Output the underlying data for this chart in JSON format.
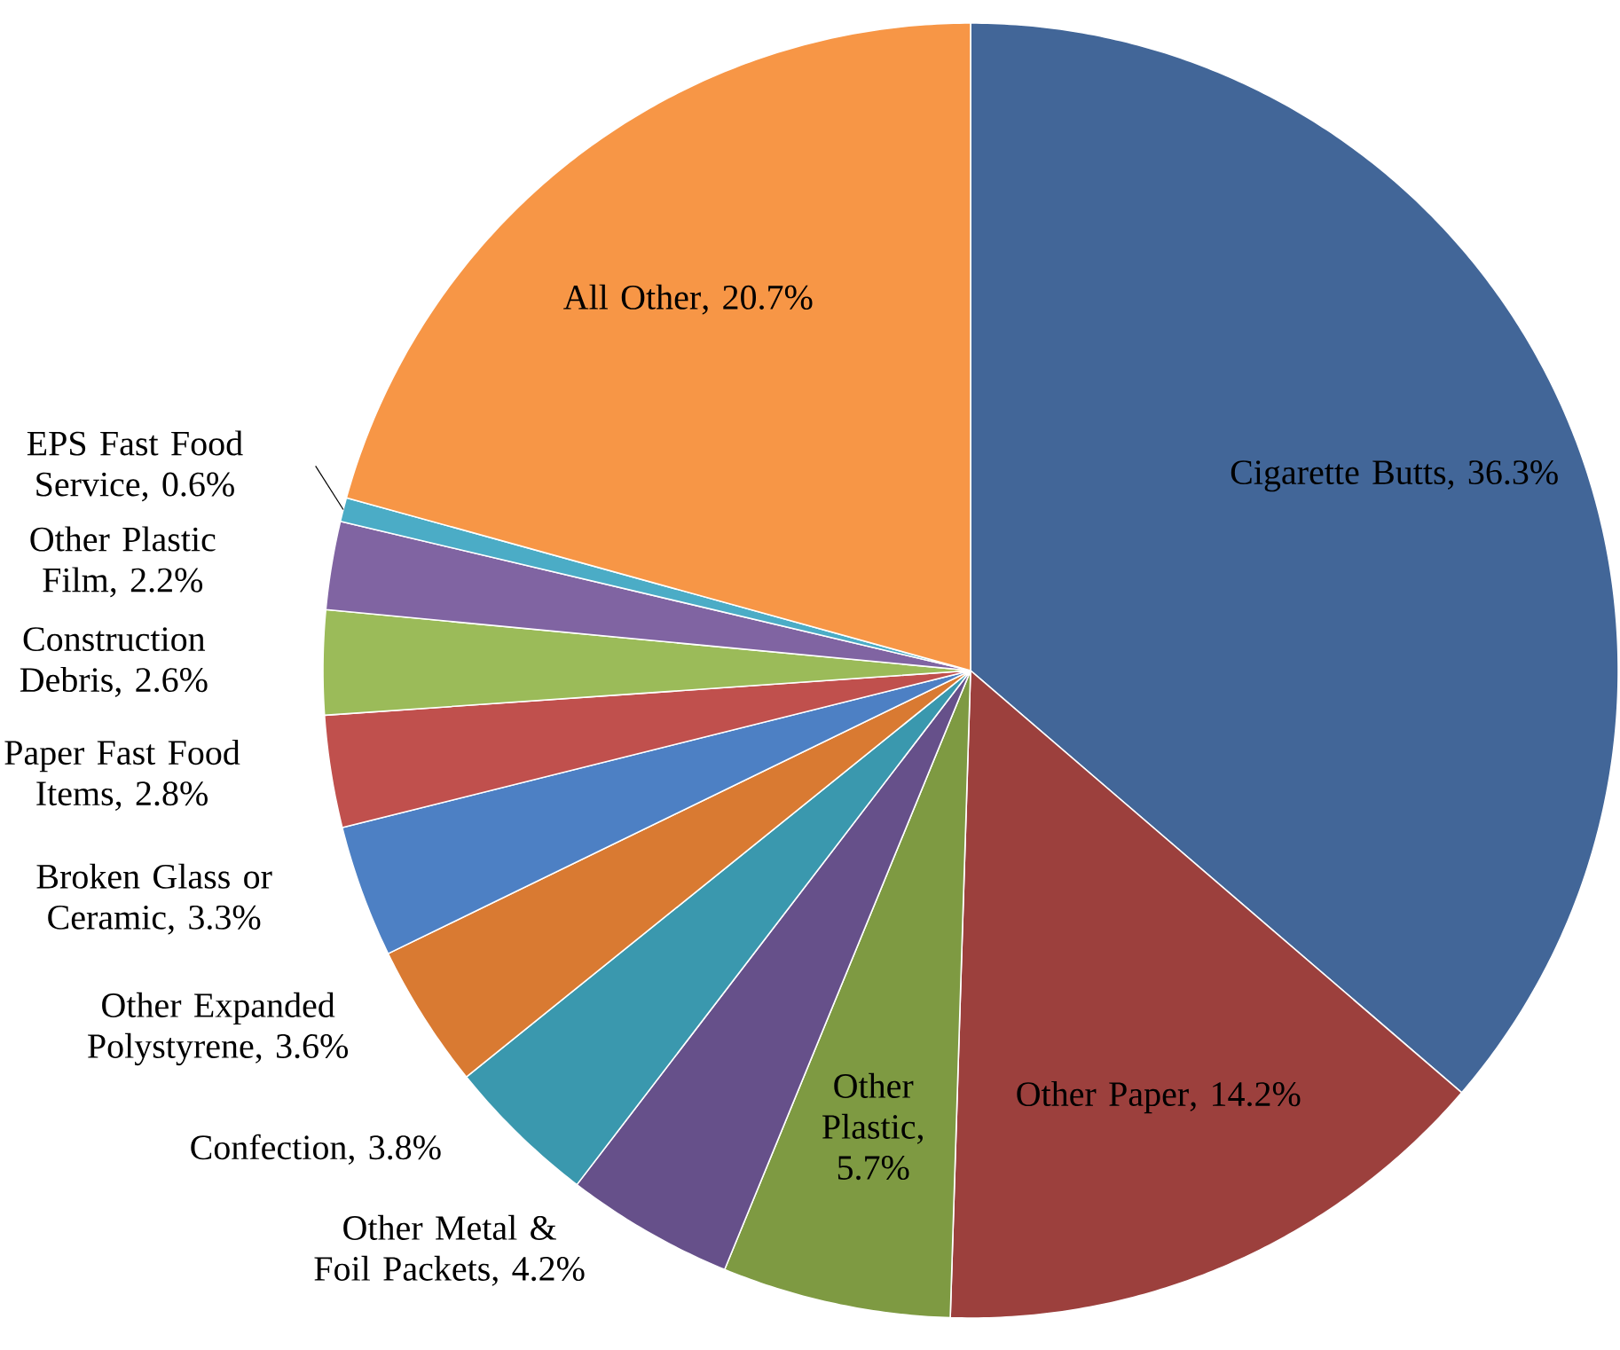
{
  "chart_data": {
    "type": "pie",
    "categories": [
      "Cigarette Butts",
      "Other Paper",
      "Other Plastic",
      "Other Metal & Foil Packets",
      "Confection",
      "Other Expanded Polystyrene",
      "Broken Glass or Ceramic",
      "Paper Fast Food Items",
      "Construction Debris",
      "Other Plastic Film",
      "EPS Fast Food Service",
      "All Other"
    ],
    "values": [
      36.3,
      14.2,
      5.7,
      4.2,
      3.8,
      3.6,
      3.3,
      2.8,
      2.6,
      2.2,
      0.6,
      20.7
    ],
    "value_labels": [
      ", 36.3%",
      ", 14.2%",
      ", 5.7%",
      ", 4.2%",
      ", 3.8%",
      ", 3.6%",
      ", 3.3%",
      ", 2.8%",
      ", 2.6%",
      ", 2.2%",
      ", 0.6%",
      ", 20.7%"
    ],
    "colors": [
      "#426698",
      "#9C403D",
      "#7E9A42",
      "#66508A",
      "#3A98AE",
      "#D97A32",
      "#4D80C4",
      "#C0504D",
      "#9BBB59",
      "#8064A2",
      "#4BACC6",
      "#F79646"
    ]
  }
}
